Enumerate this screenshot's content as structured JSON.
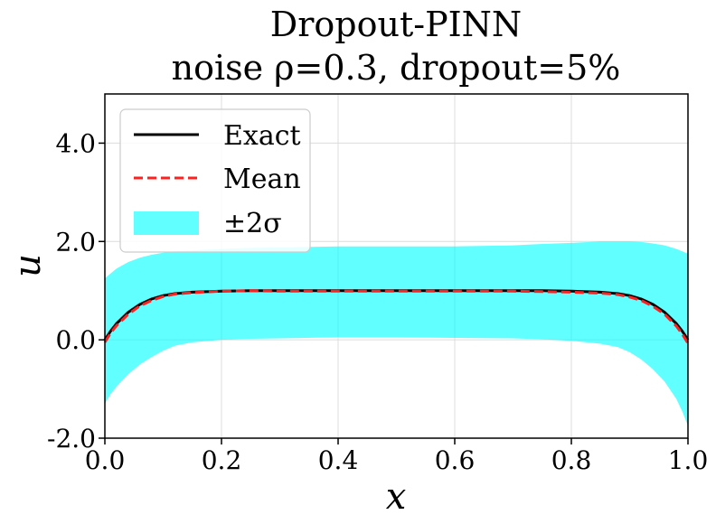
{
  "chart_data": {
    "type": "line",
    "title": "Dropout-PINN",
    "subtitle": "noise ρ=0.3, dropout=5%",
    "xlabel": "x",
    "ylabel": "u",
    "xlim": [
      0.0,
      1.0
    ],
    "ylim": [
      -2.0,
      5.0
    ],
    "xticks": [
      "0.0",
      "0.2",
      "0.4",
      "0.6",
      "0.8",
      "1.0"
    ],
    "yticks": [
      "-2.0",
      "0.0",
      "2.0",
      "4.0"
    ],
    "grid": true,
    "legend_position": "top-left",
    "x": [
      0.0,
      0.01,
      0.02,
      0.04,
      0.06,
      0.08,
      0.1,
      0.12,
      0.15,
      0.2,
      0.25,
      0.3,
      0.4,
      0.5,
      0.6,
      0.7,
      0.75,
      0.8,
      0.85,
      0.88,
      0.9,
      0.92,
      0.94,
      0.96,
      0.98,
      0.99,
      1.0
    ],
    "series": [
      {
        "name": "Exact",
        "color": "#000000",
        "style": "solid",
        "values": [
          0.0,
          0.18,
          0.33,
          0.56,
          0.72,
          0.83,
          0.9,
          0.94,
          0.97,
          0.99,
          1.0,
          1.0,
          1.0,
          1.0,
          1.0,
          1.0,
          1.0,
          0.99,
          0.97,
          0.94,
          0.9,
          0.83,
          0.72,
          0.56,
          0.33,
          0.18,
          0.0
        ]
      },
      {
        "name": "Mean",
        "color": "#ff2020",
        "style": "dashed",
        "values": [
          -0.05,
          0.14,
          0.29,
          0.52,
          0.69,
          0.8,
          0.88,
          0.93,
          0.96,
          0.99,
          1.0,
          0.99,
          0.99,
          0.99,
          0.99,
          0.99,
          0.98,
          0.97,
          0.95,
          0.92,
          0.87,
          0.8,
          0.68,
          0.52,
          0.28,
          0.12,
          -0.07
        ]
      }
    ],
    "band": {
      "name": "±2σ",
      "color": "#00ffff",
      "lower": [
        -1.3,
        -1.1,
        -0.95,
        -0.7,
        -0.5,
        -0.35,
        -0.22,
        -0.12,
        -0.05,
        0.0,
        0.02,
        0.03,
        0.05,
        0.05,
        0.04,
        0.03,
        0.01,
        -0.02,
        -0.08,
        -0.15,
        -0.25,
        -0.4,
        -0.6,
        -0.85,
        -1.2,
        -1.45,
        -1.75
      ],
      "upper": [
        1.25,
        1.35,
        1.45,
        1.58,
        1.67,
        1.73,
        1.77,
        1.8,
        1.82,
        1.85,
        1.87,
        1.88,
        1.9,
        1.9,
        1.9,
        1.92,
        1.95,
        1.97,
        2.0,
        2.0,
        2.0,
        1.99,
        1.96,
        1.92,
        1.85,
        1.8,
        1.75
      ]
    },
    "legend": [
      {
        "label": "Exact",
        "kind": "line",
        "color": "#000000",
        "style": "solid"
      },
      {
        "label": "Mean",
        "kind": "line",
        "color": "#ff2020",
        "style": "dashed"
      },
      {
        "label": "±2σ",
        "kind": "patch",
        "color": "#00ffff"
      }
    ]
  }
}
